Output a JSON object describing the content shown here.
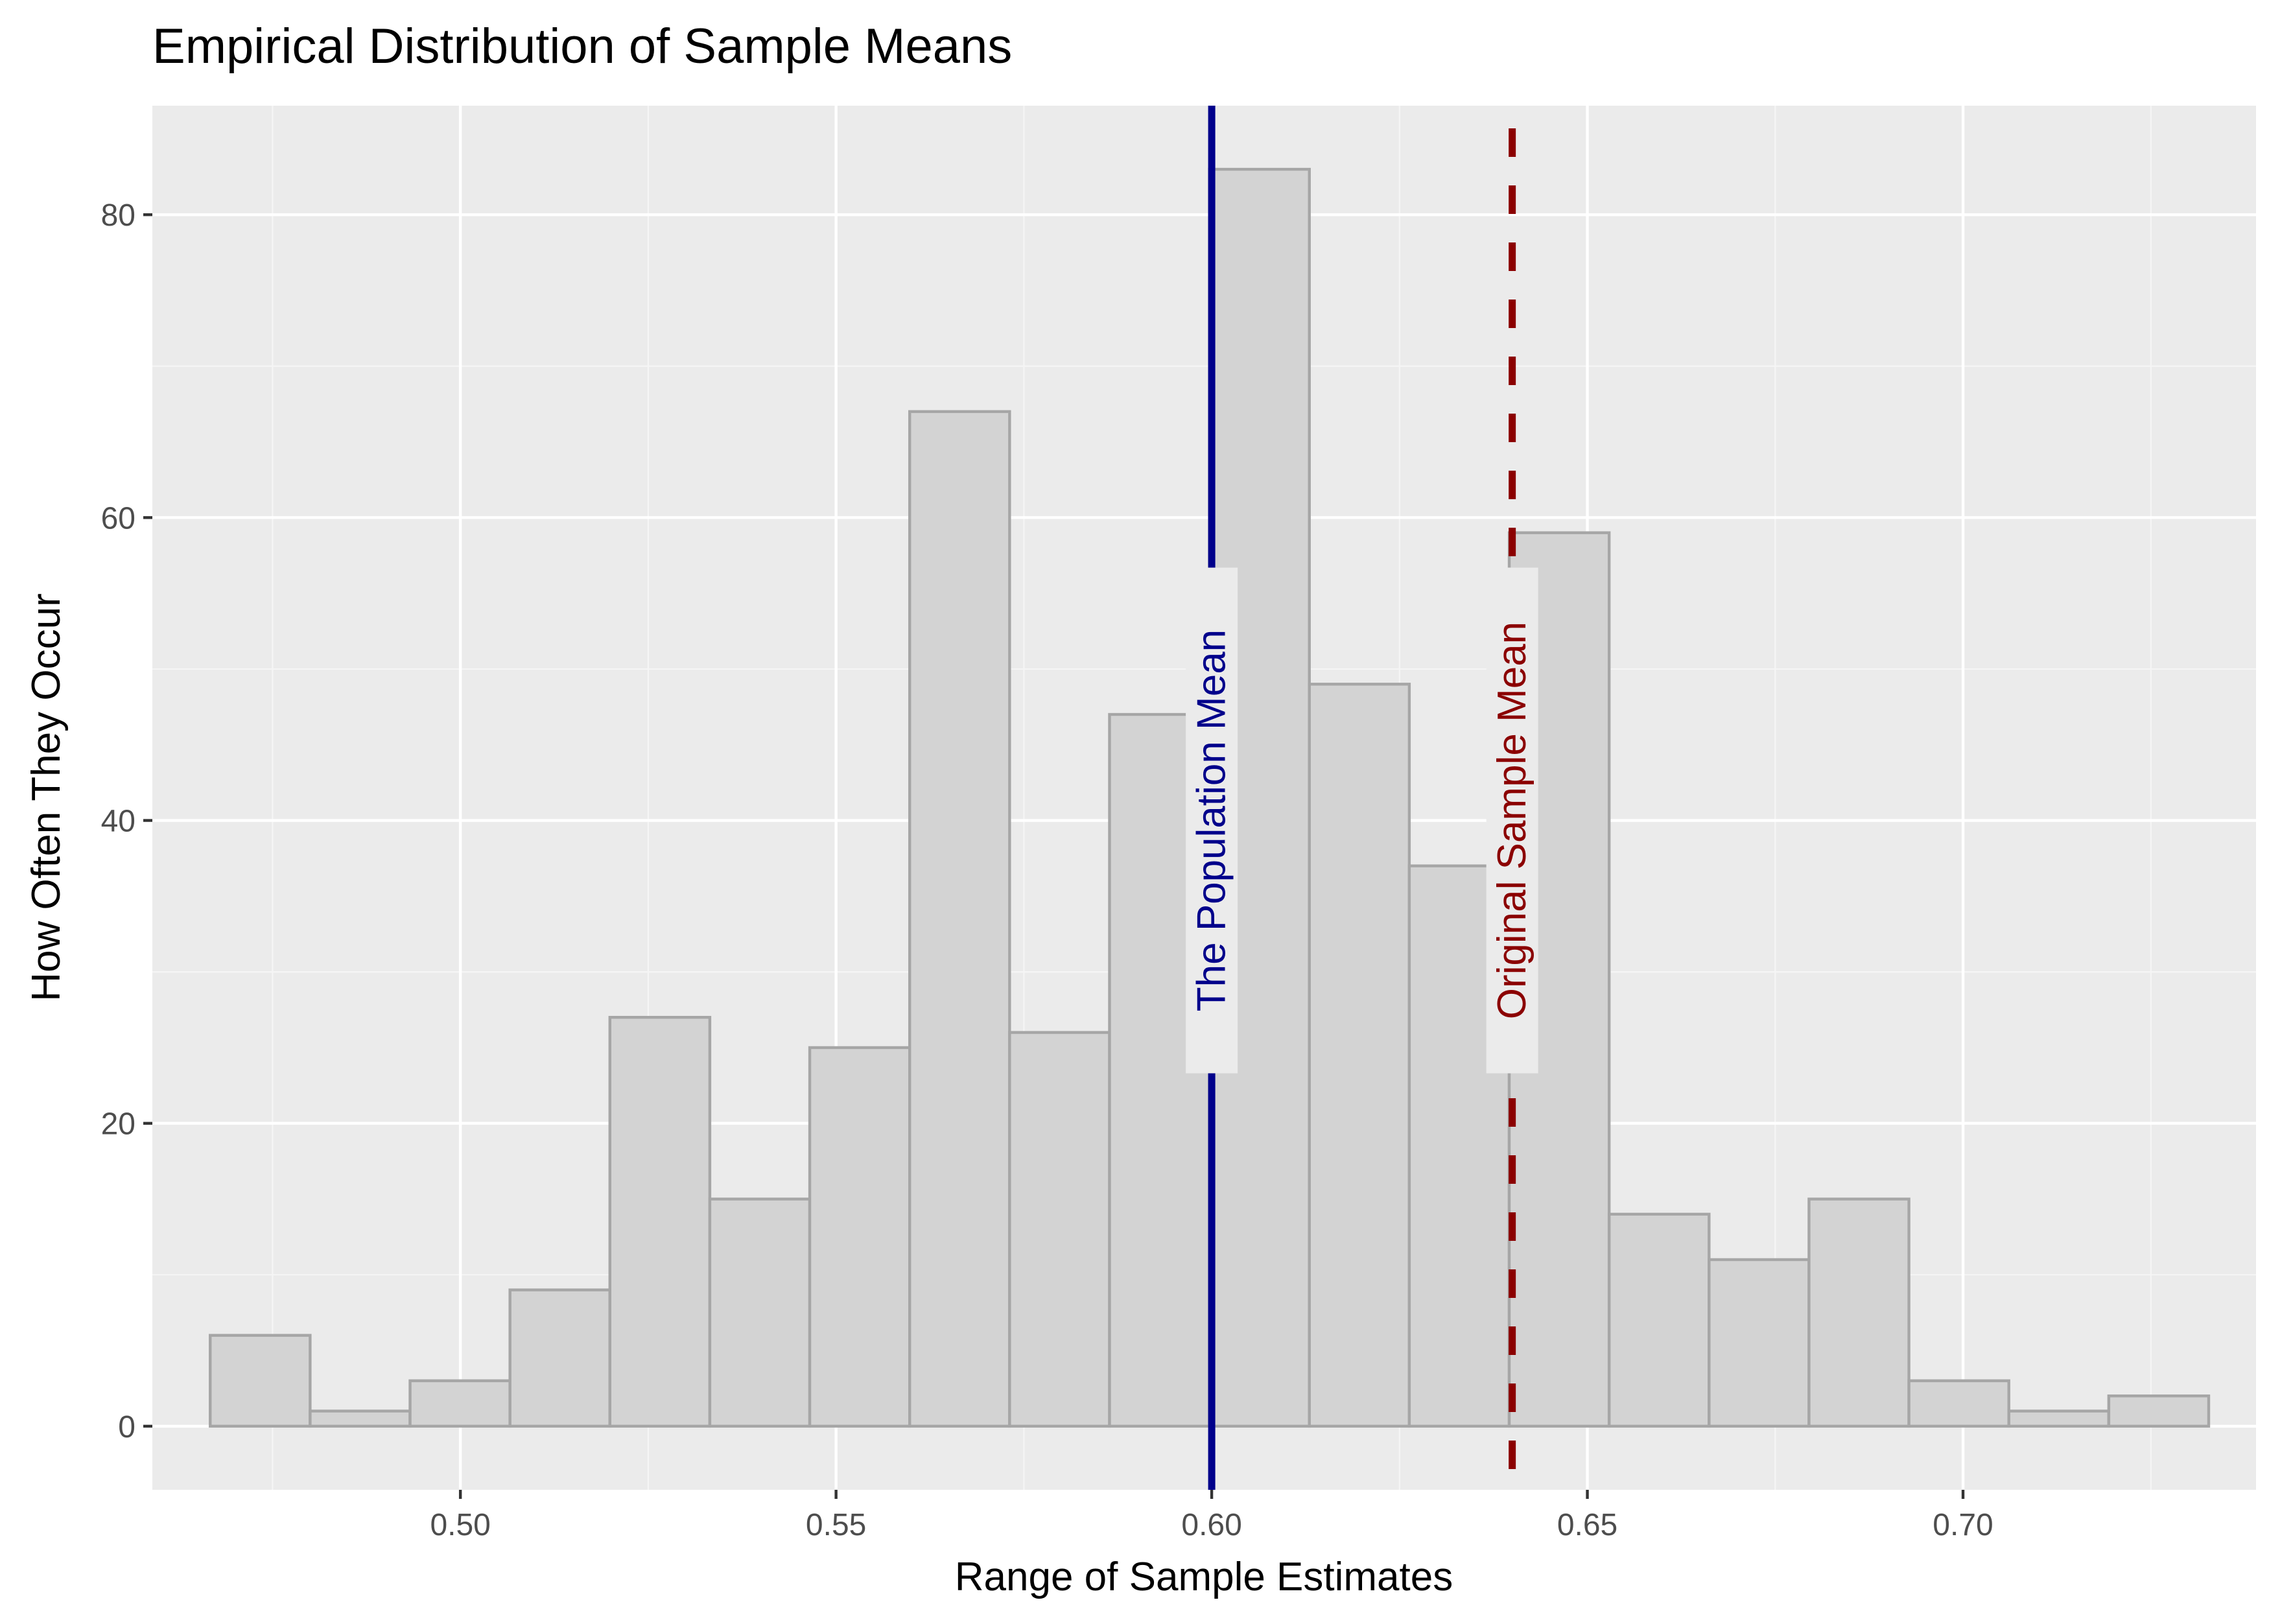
{
  "chart_data": {
    "type": "bar",
    "subtype": "histogram",
    "title": "Empirical Distribution of Sample Means",
    "xlabel": "Range of Sample Estimates",
    "ylabel": "How Often They Occur",
    "xlim": [
      0.459,
      0.739
    ],
    "ylim": [
      -4.2,
      87.2
    ],
    "x_ticks": [
      0.5,
      0.55,
      0.6,
      0.65,
      0.7
    ],
    "x_tick_labels": [
      "0.50",
      "0.55",
      "0.60",
      "0.65",
      "0.70"
    ],
    "y_ticks": [
      0,
      20,
      40,
      60,
      80
    ],
    "y_tick_labels": [
      "0",
      "20",
      "40",
      "60",
      "80"
    ],
    "grid": true,
    "bins": [
      {
        "x0": 0.4667,
        "x1": 0.48,
        "count": 6
      },
      {
        "x0": 0.48,
        "x1": 0.4933,
        "count": 1
      },
      {
        "x0": 0.4933,
        "x1": 0.5066,
        "count": 3
      },
      {
        "x0": 0.5066,
        "x1": 0.5199,
        "count": 9
      },
      {
        "x0": 0.5199,
        "x1": 0.5332,
        "count": 27
      },
      {
        "x0": 0.5332,
        "x1": 0.5465,
        "count": 15
      },
      {
        "x0": 0.5465,
        "x1": 0.5598,
        "count": 25
      },
      {
        "x0": 0.5598,
        "x1": 0.5731,
        "count": 67
      },
      {
        "x0": 0.5731,
        "x1": 0.5864,
        "count": 26
      },
      {
        "x0": 0.5864,
        "x1": 0.5997,
        "count": 47
      },
      {
        "x0": 0.5997,
        "x1": 0.613,
        "count": 83
      },
      {
        "x0": 0.613,
        "x1": 0.6263,
        "count": 49
      },
      {
        "x0": 0.6263,
        "x1": 0.6396,
        "count": 37
      },
      {
        "x0": 0.6396,
        "x1": 0.6529,
        "count": 59
      },
      {
        "x0": 0.6529,
        "x1": 0.6662,
        "count": 14
      },
      {
        "x0": 0.6662,
        "x1": 0.6795,
        "count": 11
      },
      {
        "x0": 0.6795,
        "x1": 0.6928,
        "count": 15
      },
      {
        "x0": 0.6928,
        "x1": 0.7061,
        "count": 3
      },
      {
        "x0": 0.7061,
        "x1": 0.7194,
        "count": 1
      },
      {
        "x0": 0.7194,
        "x1": 0.7327,
        "count": 2
      }
    ],
    "reference_lines": [
      {
        "label": "The Population Mean",
        "x": 0.6,
        "style": "solid",
        "color": "#00008b",
        "label_y": 40
      },
      {
        "label": "Original Sample Mean",
        "x": 0.64,
        "style": "dashed",
        "color": "#8b0000",
        "label_y": 40
      }
    ],
    "colors": {
      "bar_fill": "#d3d3d3",
      "bar_stroke": "#a6a6a6",
      "panel": "#ebebeb",
      "grid_major": "#ffffff",
      "grid_minor": "#f5f5f5"
    }
  }
}
